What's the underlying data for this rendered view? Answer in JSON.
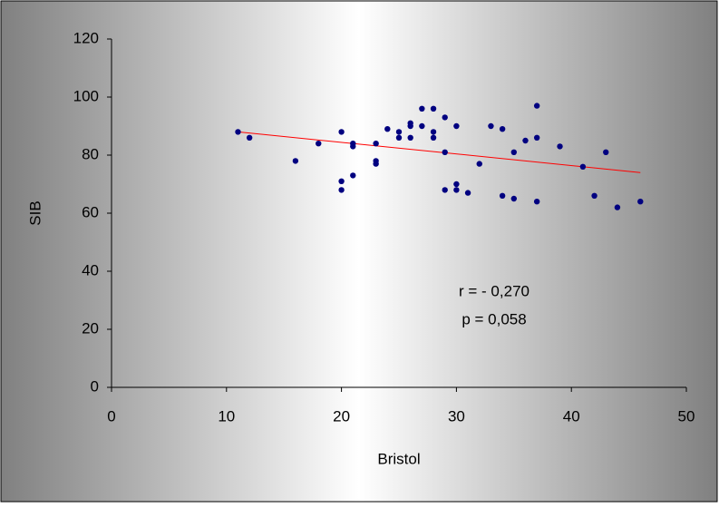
{
  "chart_data": {
    "type": "scatter",
    "x_label": "Bristol",
    "y_label": "SIB",
    "x": [
      11,
      12,
      16,
      18,
      20,
      20,
      20,
      21,
      21,
      21,
      23,
      23,
      23,
      24,
      25,
      25,
      26,
      26,
      26,
      27,
      27,
      28,
      28,
      28,
      29,
      29,
      29,
      30,
      30,
      30,
      31,
      32,
      33,
      34,
      34,
      35,
      35,
      36,
      37,
      37,
      37,
      39,
      41,
      42,
      43,
      44,
      46
    ],
    "y": [
      88,
      86,
      78,
      84,
      88,
      71,
      68,
      84,
      83,
      73,
      84,
      78,
      77,
      89,
      88,
      86,
      91,
      90,
      86,
      96,
      90,
      96,
      88,
      86,
      93,
      81,
      68,
      90,
      70,
      68,
      67,
      77,
      90,
      89,
      66,
      81,
      65,
      85,
      86,
      97,
      64,
      83,
      76,
      66,
      81,
      62,
      64
    ],
    "color": "#000080",
    "trendline": {
      "x": [
        11,
        46
      ],
      "y": [
        88,
        74
      ],
      "color": "#ff0000"
    },
    "annotations": [
      "r = - 0,270",
      "p = 0,058"
    ],
    "xlim": [
      0,
      50
    ],
    "xticks": [
      0,
      10,
      20,
      30,
      40,
      50
    ],
    "ylim": [
      0,
      120
    ],
    "yticks": [
      0,
      20,
      40,
      60,
      80,
      100,
      120
    ],
    "grid": false
  }
}
